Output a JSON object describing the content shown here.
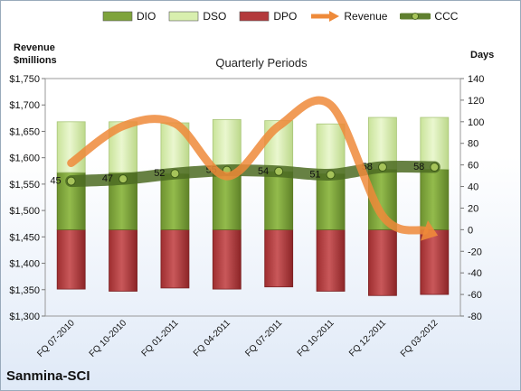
{
  "chart_data": {
    "type": "bar",
    "subtitle": "Quarterly Periods",
    "company": "Sanmina-SCI",
    "left_axis_title": [
      "Revenue",
      "$millions"
    ],
    "right_axis_title": "Days",
    "categories": [
      "FQ 07-2010",
      "FQ 10-2010",
      "FQ 01-2011",
      "FQ 04-2011",
      "FQ 07-2011",
      "FQ 10-2011",
      "FQ 12-2011",
      "FQ 03-2012"
    ],
    "series": [
      {
        "name": "DIO",
        "axis": "right",
        "color": "#7ea33b",
        "values": [
          53,
          53,
          52,
          55,
          54,
          52,
          56,
          56
        ]
      },
      {
        "name": "DSO",
        "axis": "right",
        "color": "#d8efae",
        "values": [
          47,
          47,
          47,
          47,
          47,
          46,
          48,
          48
        ]
      },
      {
        "name": "DPO",
        "axis": "right",
        "color": "#b33a3c",
        "values": [
          -55,
          -57,
          -54,
          -55,
          -53,
          -57,
          -61,
          -60
        ]
      },
      {
        "name": "Revenue",
        "axis": "left",
        "color": "#ee8a3a",
        "values": [
          1590,
          1660,
          1665,
          1565,
          1660,
          1700,
          1490,
          1455
        ]
      },
      {
        "name": "CCC",
        "axis": "right",
        "color": "#5f7f2f",
        "values": [
          45,
          47,
          52,
          55,
          54,
          51,
          58,
          58
        ]
      }
    ],
    "ccc_labels": [
      "45",
      "47",
      "52",
      "55",
      "54",
      "51",
      "58",
      "58"
    ],
    "left_axis": {
      "min": 1300,
      "max": 1750,
      "step": 50,
      "ticks": [
        "$1,300",
        "$1,350",
        "$1,400",
        "$1,450",
        "$1,500",
        "$1,550",
        "$1,600",
        "$1,650",
        "$1,700",
        "$1,750"
      ]
    },
    "right_axis": {
      "min": -80,
      "max": 140,
      "step": 20,
      "ticks": [
        "-80",
        "-60",
        "-40",
        "-20",
        "0",
        "20",
        "40",
        "60",
        "80",
        "100",
        "120",
        "140"
      ]
    },
    "legend": [
      {
        "label": "DIO",
        "color": "#7ea33b",
        "kind": "box"
      },
      {
        "label": "DSO",
        "color": "#d8efae",
        "kind": "box"
      },
      {
        "label": "DPO",
        "color": "#b33a3c",
        "kind": "box"
      },
      {
        "label": "Revenue",
        "color": "#ee8a3a",
        "kind": "arrow"
      },
      {
        "label": "CCC",
        "color": "#5f7f2f",
        "kind": "line-dot"
      }
    ],
    "legend_position": "top"
  }
}
